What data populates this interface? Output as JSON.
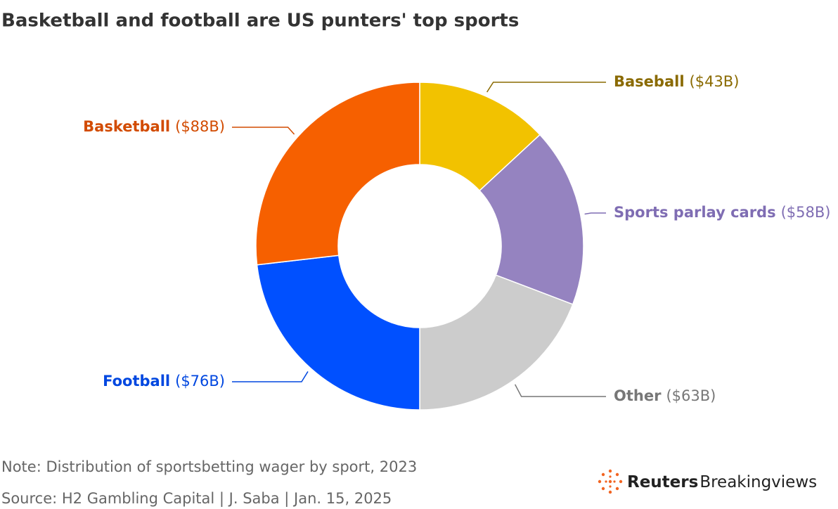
{
  "chart_data": {
    "type": "pie",
    "title": "Basketball and football are US punters' top sports",
    "note": "Note: Distribution of sportsbetting wager by sport, 2023",
    "source": "Source: H2 Gambling Capital | J. Saba | Jan. 15, 2025",
    "categories": [
      "Baseball",
      "Sports parlay cards",
      "Other",
      "Football",
      "Basketball"
    ],
    "values": [
      43,
      58,
      63,
      76,
      88
    ],
    "value_labels": [
      "($43B)",
      "($58B)",
      "($63B)",
      "($76B)",
      "($88B)"
    ],
    "colors": [
      "#f2c200",
      "#9583c0",
      "#cccccc",
      "#0050ff",
      "#f66000"
    ],
    "label_colors": [
      "#8a6a00",
      "#7f6db3",
      "#777777",
      "#0047e0",
      "#d24b00"
    ]
  },
  "logo": {
    "bold": "Reuters",
    "light": "Breakingviews"
  }
}
